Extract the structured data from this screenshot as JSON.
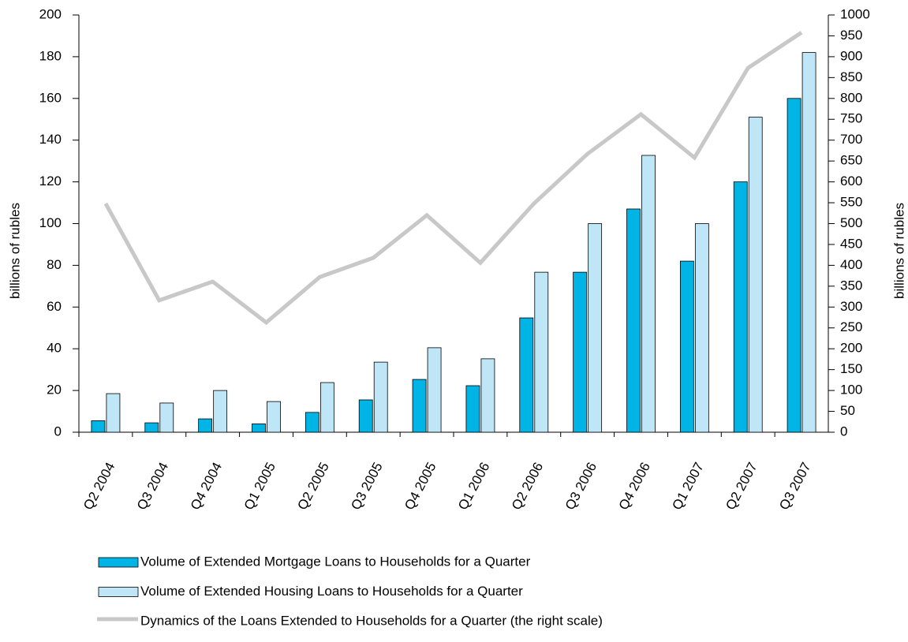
{
  "chart_data": {
    "type": "bar",
    "categories": [
      "Q2 2004",
      "Q3 2004",
      "Q4 2004",
      "Q1 2005",
      "Q2 2005",
      "Q3 2005",
      "Q4 2005",
      "Q1 2006",
      "Q2 2006",
      "Q3 2006",
      "Q4 2006",
      "Q1 2007",
      "Q2 2007",
      "Q3 2007"
    ],
    "ylabel": "billions of rubles",
    "y2label": "billions of rubles",
    "ylim": [
      0,
      200
    ],
    "yticks": [
      0,
      20,
      40,
      60,
      80,
      100,
      120,
      140,
      160,
      180,
      200
    ],
    "y2lim": [
      0,
      1000
    ],
    "y2ticks": [
      0,
      50,
      100,
      150,
      200,
      250,
      300,
      350,
      400,
      450,
      500,
      550,
      600,
      650,
      700,
      750,
      800,
      850,
      900,
      950,
      1000
    ],
    "grid": false,
    "series": [
      {
        "name": "Volume of Extended Mortgage Loans to Households  for a Quarter",
        "type": "bar",
        "color": "#00b4e6",
        "values": [
          5.5,
          4.5,
          6.4,
          4,
          9.5,
          15.5,
          25.3,
          22.3,
          54.8,
          76.7,
          107,
          82,
          120,
          160
        ]
      },
      {
        "name": "Volume of Extended Housing Loans to Households  for a Quarter",
        "type": "bar",
        "color": "#bfe6f7",
        "values": [
          18.5,
          14,
          20,
          14.7,
          23.8,
          33.6,
          40.5,
          35.2,
          76.7,
          100,
          132.7,
          100,
          151,
          182
        ]
      },
      {
        "name": "Dynamics of the Loans Extended to Households for a Quarter (the right scale)",
        "type": "line",
        "axis": "y2",
        "color": "#c8c8c8",
        "values": [
          548,
          316,
          361,
          263,
          372,
          418,
          520,
          406,
          548,
          667,
          762,
          658,
          873,
          958
        ]
      }
    ]
  }
}
